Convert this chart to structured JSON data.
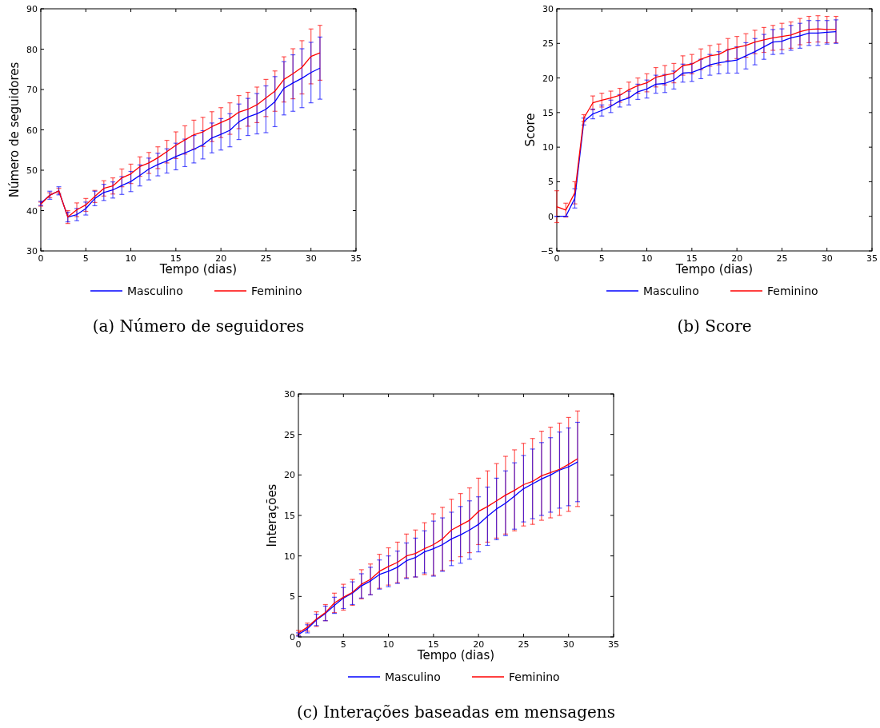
{
  "chart_data": [
    {
      "type": "line",
      "title": "(a) Número de seguidores",
      "xlabel": "Tempo (dias)",
      "ylabel": "Número de seguidores",
      "x": [
        0,
        1,
        2,
        3,
        4,
        5,
        6,
        7,
        8,
        9,
        10,
        11,
        12,
        13,
        14,
        15,
        16,
        17,
        18,
        19,
        20,
        21,
        22,
        23,
        24,
        25,
        26,
        27,
        28,
        29,
        30,
        31
      ],
      "xlim": [
        0,
        35
      ],
      "xticks": [
        0,
        5,
        10,
        15,
        20,
        25,
        30,
        35
      ],
      "ylim": [
        30,
        90
      ],
      "yticks": [
        30,
        40,
        50,
        60,
        70,
        80,
        90
      ],
      "legend": "bottom",
      "grid": false,
      "series": [
        {
          "name": "Masculino",
          "color": "#0000ff",
          "values": [
            41.8,
            43.8,
            44.9,
            38.4,
            39,
            40.5,
            43,
            44.5,
            45.1,
            46.2,
            47.2,
            48.7,
            50.3,
            51.4,
            52.3,
            53.4,
            54.3,
            55.2,
            56.3,
            58,
            58.9,
            59.9,
            62,
            63.2,
            64,
            65.1,
            67,
            70.3,
            71.6,
            72.8,
            74.2,
            75.3
          ],
          "errors": [
            0.5,
            1,
            1,
            1.2,
            1.5,
            1.6,
            1.8,
            2,
            2,
            2.2,
            2.5,
            2.6,
            2.7,
            2.8,
            3,
            3.3,
            3.4,
            3.4,
            3.5,
            3.7,
            3.9,
            4.1,
            4.4,
            4.6,
            5,
            5.8,
            6.2,
            6.6,
            7,
            7.3,
            7.5,
            7.7
          ]
        },
        {
          "name": "Feminino",
          "color": "#ff0000",
          "values": [
            41.6,
            43.8,
            44.9,
            38.4,
            40.2,
            41.4,
            43.5,
            45.5,
            46.1,
            48.1,
            49.1,
            50.9,
            51.8,
            53.1,
            54.6,
            56.2,
            57.5,
            58.8,
            59.5,
            60.8,
            61.8,
            62.8,
            64.4,
            65.1,
            66.2,
            67.9,
            69.6,
            72.5,
            73.9,
            75.5,
            78.2,
            79.1
          ],
          "errors": [
            0.5,
            0.6,
            0.6,
            1.6,
            1.7,
            1.6,
            1.5,
            1.9,
            2,
            2.2,
            2.4,
            2.4,
            2.6,
            2.7,
            2.8,
            3.3,
            3.5,
            3.6,
            3.6,
            3.7,
            3.7,
            3.9,
            4.1,
            4.2,
            4.4,
            4.6,
            5,
            5.6,
            6.2,
            6.6,
            6.8,
            6.8
          ]
        }
      ]
    },
    {
      "type": "line",
      "title": "(b) Score",
      "xlabel": "Tempo (dias)",
      "ylabel": "Score",
      "x": [
        0,
        1,
        2,
        3,
        4,
        5,
        6,
        7,
        8,
        9,
        10,
        11,
        12,
        13,
        14,
        15,
        16,
        17,
        18,
        19,
        20,
        21,
        22,
        23,
        24,
        25,
        26,
        27,
        28,
        29,
        30,
        31
      ],
      "xlim": [
        0,
        35
      ],
      "xticks": [
        0,
        5,
        10,
        15,
        20,
        25,
        30,
        35
      ],
      "ylim": [
        -5,
        30
      ],
      "yticks": [
        {
          "value": -5,
          "label": "−5"
        },
        0,
        5,
        10,
        15,
        20,
        25,
        30
      ],
      "legend": "bottom",
      "grid": false,
      "series": [
        {
          "name": "Masculino",
          "color": "#0000ff",
          "values": [
            0,
            0,
            2.6,
            13.7,
            14.8,
            15.3,
            15.9,
            16.7,
            17.1,
            18,
            18.4,
            19.1,
            19.2,
            19.7,
            20.7,
            20.8,
            21.3,
            21.9,
            22.2,
            22.4,
            22.6,
            23.2,
            23.8,
            24.5,
            25.2,
            25.3,
            25.8,
            26.1,
            26.5,
            26.5,
            26.6,
            26.7
          ],
          "errors": [
            0,
            0,
            1.4,
            0.5,
            0.7,
            0.8,
            0.9,
            0.9,
            1,
            1.1,
            1.3,
            1.3,
            1.3,
            1.3,
            1.3,
            1.3,
            1.4,
            1.5,
            1.6,
            1.7,
            1.9,
            1.9,
            1.9,
            1.8,
            1.8,
            1.8,
            1.8,
            1.8,
            1.8,
            1.8,
            1.7,
            1.7
          ]
        },
        {
          "name": "Feminino",
          "color": "#ff0000",
          "values": [
            1.4,
            0.9,
            3.4,
            14.2,
            16.4,
            16.8,
            17.1,
            17.5,
            18.3,
            18.9,
            19.3,
            20.1,
            20.4,
            20.7,
            21.8,
            22,
            22.7,
            23.2,
            23.4,
            24.1,
            24.4,
            24.7,
            25.2,
            25.5,
            25.8,
            26,
            26.2,
            26.7,
            27,
            27.1,
            27,
            27
          ],
          "errors": [
            2.3,
            1,
            1.6,
            0.5,
            1,
            1,
            1,
            1,
            1.1,
            1.1,
            1.3,
            1.4,
            1.4,
            1.4,
            1.4,
            1.4,
            1.5,
            1.5,
            1.5,
            1.6,
            1.6,
            1.7,
            1.7,
            1.8,
            1.8,
            1.9,
            1.9,
            1.9,
            1.9,
            1.9,
            1.9,
            1.9
          ]
        }
      ]
    },
    {
      "type": "line",
      "title": "(c) Interações baseadas em mensagens",
      "xlabel": "Tempo (dias)",
      "ylabel": "Interações",
      "x": [
        0,
        1,
        2,
        3,
        4,
        5,
        6,
        7,
        8,
        9,
        10,
        11,
        12,
        13,
        14,
        15,
        16,
        17,
        18,
        19,
        20,
        21,
        22,
        23,
        24,
        25,
        26,
        27,
        28,
        29,
        30,
        31
      ],
      "xlim": [
        0,
        35
      ],
      "xticks": [
        0,
        5,
        10,
        15,
        20,
        25,
        30,
        35
      ],
      "ylim": [
        0,
        30
      ],
      "yticks": [
        0,
        5,
        10,
        15,
        20,
        25,
        30
      ],
      "legend": "bottom",
      "grid": false,
      "series": [
        {
          "name": "Masculino",
          "color": "#0000ff",
          "values": [
            0.3,
            1,
            2.1,
            2.9,
            3.9,
            4.8,
            5.4,
            6.3,
            6.9,
            7.7,
            8.1,
            8.6,
            9.4,
            9.8,
            10.5,
            10.9,
            11.4,
            12.1,
            12.6,
            13.2,
            13.9,
            14.9,
            15.8,
            16.5,
            17.4,
            18.3,
            18.9,
            19.5,
            20,
            20.6,
            21,
            21.6
          ],
          "errors": [
            0.2,
            0.5,
            0.7,
            0.9,
            1,
            1.3,
            1.4,
            1.5,
            1.7,
            1.8,
            1.9,
            2,
            2.2,
            2.4,
            2.6,
            3.4,
            3.3,
            3.3,
            3.5,
            3.6,
            3.4,
            3.6,
            3.8,
            4,
            4.1,
            4.1,
            4.3,
            4.5,
            4.6,
            4.7,
            4.8,
            4.9
          ]
        },
        {
          "name": "Feminino",
          "color": "#ff0000",
          "values": [
            0.5,
            1.2,
            2.2,
            3,
            4.2,
            4.9,
            5.5,
            6.5,
            7.1,
            8.1,
            8.7,
            9.2,
            10,
            10.3,
            10.9,
            11.4,
            12.1,
            13.2,
            13.8,
            14.4,
            15.5,
            16.1,
            16.8,
            17.5,
            18.1,
            18.8,
            19.2,
            19.9,
            20.3,
            20.7,
            21.3,
            22
          ],
          "errors": [
            0.3,
            0.5,
            0.9,
            1,
            1.2,
            1.6,
            1.6,
            1.8,
            1.9,
            2.1,
            2.3,
            2.5,
            2.7,
            2.9,
            3.2,
            3.8,
            3.9,
            3.8,
            3.9,
            4,
            4.1,
            4.4,
            4.6,
            4.8,
            5,
            5.1,
            5.3,
            5.5,
            5.6,
            5.7,
            5.8,
            5.9
          ]
        }
      ]
    }
  ]
}
